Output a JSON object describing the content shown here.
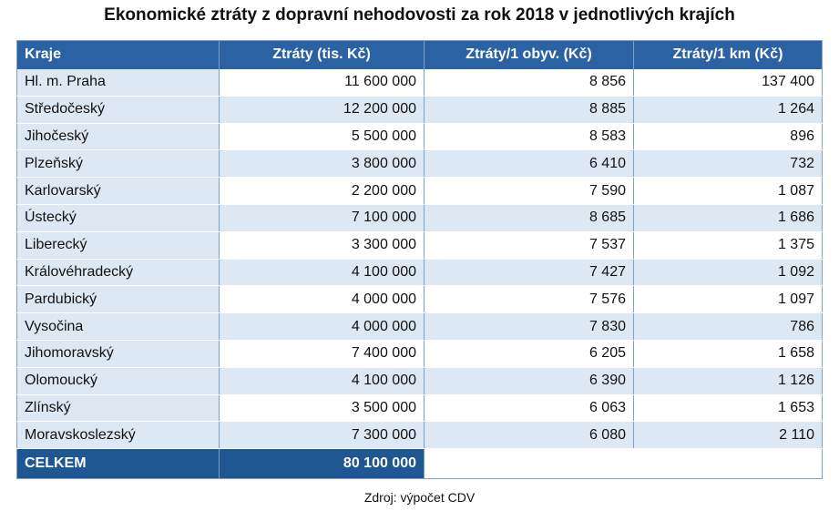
{
  "title": "Ekonomické ztráty z dopravní nehodovosti za rok 2018 v jednotlivých krajích",
  "headers": [
    "Kraje",
    "Ztráty (tis. Kč)",
    "Ztráty/1 obyv. (Kč)",
    "Ztráty/1 km (Kč)"
  ],
  "rows": [
    [
      "Hl. m. Praha",
      "11 600 000",
      "8 856",
      "137 400"
    ],
    [
      "Středočeský",
      "12 200 000",
      "8 885",
      "1 264"
    ],
    [
      "Jihočeský",
      "5 500 000",
      "8 583",
      "896"
    ],
    [
      "Plzeňský",
      "3 800 000",
      "6 410",
      "732"
    ],
    [
      "Karlovarský",
      "2 200 000",
      "7 590",
      "1 087"
    ],
    [
      "Ústecký",
      "7 100 000",
      "8 685",
      "1 686"
    ],
    [
      "Liberecký",
      "3 300 000",
      "7 537",
      "1 375"
    ],
    [
      "Královéhradecký",
      "4 100 000",
      "7 427",
      "1 092"
    ],
    [
      "Pardubický",
      "4 000 000",
      "7 576",
      "1 097"
    ],
    [
      "Vysočina",
      "4 000 000",
      "7 830",
      "786"
    ],
    [
      "Jihomoravský",
      "7 400 000",
      "6 205",
      "1 658"
    ],
    [
      "Olomoucký",
      "4 100 000",
      "6 390",
      "1 126"
    ],
    [
      "Zlínský",
      "3 500 000",
      "6 063",
      "1 653"
    ],
    [
      "Moravskoslezský",
      "7 300 000",
      "6 080",
      "2 110"
    ]
  ],
  "total": {
    "label": "CELKEM",
    "value": "80 100 000"
  },
  "source": "Zdroj: výpočet CDV",
  "colors": {
    "header": "#2b62a4",
    "footer": "#1f5792",
    "band": "#dde8f5"
  }
}
